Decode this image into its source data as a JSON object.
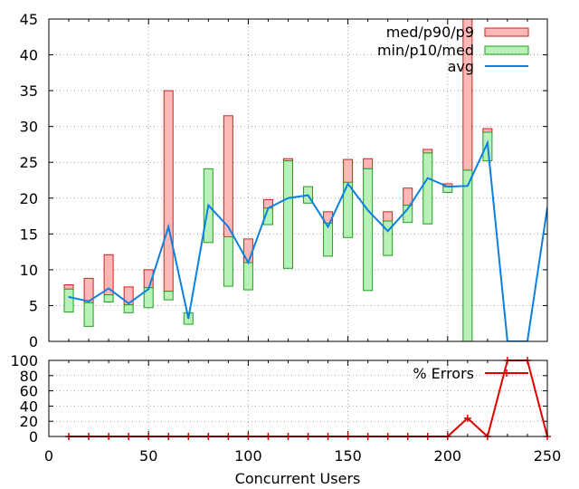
{
  "chart_data": [
    {
      "type": "bar",
      "panel": "top",
      "x": [
        10,
        20,
        30,
        40,
        50,
        60,
        70,
        80,
        90,
        100,
        110,
        120,
        130,
        140,
        150,
        160,
        170,
        180,
        190,
        200,
        210,
        220,
        230,
        240,
        250
      ],
      "series": [
        {
          "name": "med/p90/p9",
          "kind": "range-box",
          "color": "#ffb8b8",
          "low": [
            7.3,
            5.4,
            6.5,
            5.1,
            7.5,
            7.0,
            3.2,
            19.0,
            14.6,
            11.0,
            18.6,
            25.2,
            20.3,
            16.5,
            22.2,
            24.1,
            16.8,
            19.0,
            26.3,
            21.6,
            23.9,
            29.2,
            0,
            0,
            18.7
          ],
          "high": [
            7.9,
            8.8,
            12.1,
            7.6,
            10.0,
            35.0,
            3.2,
            19.0,
            31.5,
            14.3,
            19.8,
            25.5,
            20.3,
            18.1,
            25.4,
            25.5,
            18.1,
            21.4,
            26.8,
            22.0,
            45,
            29.7,
            0,
            0,
            18.7
          ]
        },
        {
          "name": "min/p10/med",
          "kind": "range-box",
          "color": "#b8f0b8",
          "low": [
            4.1,
            2.1,
            5.5,
            4.0,
            4.7,
            5.8,
            2.4,
            13.8,
            7.7,
            7.2,
            16.3,
            10.2,
            19.3,
            11.9,
            14.5,
            7.1,
            12.0,
            16.6,
            16.4,
            20.8,
            0.0,
            25.2,
            0,
            0,
            18.7
          ],
          "high": [
            7.3,
            5.4,
            6.5,
            5.1,
            7.5,
            7.0,
            4.0,
            24.1,
            14.6,
            11.0,
            18.6,
            25.2,
            21.6,
            16.5,
            22.2,
            24.1,
            16.8,
            19.0,
            26.3,
            21.6,
            23.9,
            29.2,
            0,
            0,
            18.7
          ]
        },
        {
          "name": "avg",
          "kind": "line",
          "color": "#0a80e0",
          "values": [
            6.2,
            5.6,
            7.4,
            5.3,
            7.3,
            16.0,
            3.2,
            19.0,
            16.0,
            11.0,
            18.6,
            20.0,
            20.4,
            16.0,
            22.0,
            18.3,
            15.4,
            18.5,
            22.8,
            21.6,
            21.7,
            27.7,
            0,
            0,
            18.7
          ]
        }
      ],
      "xlim": [
        0,
        250
      ],
      "ylim": [
        0,
        45
      ],
      "yticks": [
        "0",
        "5",
        "10",
        "15",
        "20",
        "25",
        "30",
        "35",
        "40",
        "45"
      ],
      "grid": true,
      "legend_position": "top-right"
    },
    {
      "type": "line",
      "panel": "bottom",
      "x": [
        10,
        20,
        30,
        40,
        50,
        60,
        70,
        80,
        90,
        100,
        110,
        120,
        130,
        140,
        150,
        160,
        170,
        180,
        190,
        200,
        210,
        220,
        230,
        240,
        250
      ],
      "series": [
        {
          "name": "% Errors",
          "color": "#e00000",
          "values": [
            0,
            0,
            0,
            0,
            0,
            0,
            0,
            0,
            0,
            0,
            0,
            0,
            0,
            0,
            0,
            0,
            0,
            0,
            0,
            0,
            24,
            0,
            100,
            100,
            0
          ]
        }
      ],
      "xlim": [
        0,
        250
      ],
      "ylim": [
        0,
        100
      ],
      "xticks": [
        "0",
        "50",
        "100",
        "150",
        "200",
        "250"
      ],
      "yticks": [
        "0",
        "20",
        "40",
        "60",
        "80",
        "100"
      ],
      "xlabel": "Concurrent Users",
      "grid": true,
      "legend_position": "top-right"
    }
  ]
}
